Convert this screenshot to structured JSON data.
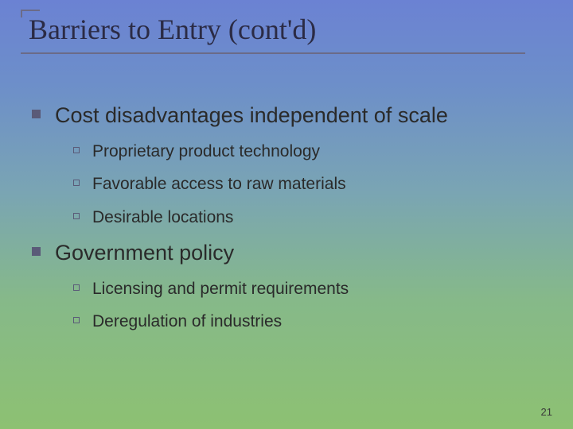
{
  "slide": {
    "title": "Barriers to Entry (cont'd)",
    "page_number": "21",
    "background_gradient": {
      "from": "#6b82d3",
      "to": "#8dc172"
    },
    "title_color": "#2b2b45",
    "title_font": "Georgia serif",
    "title_fontsize": 36,
    "body_font": "Arial",
    "l1_fontsize": 27,
    "l2_fontsize": 21,
    "l1_bullet_color": "#5a5a78",
    "l2_bullet_border": "#5a5a78",
    "items": [
      {
        "text": "Cost disadvantages independent of scale",
        "children": [
          {
            "text": "Proprietary product technology"
          },
          {
            "text": "Favorable access to raw materials"
          },
          {
            "text": "Desirable locations"
          }
        ]
      },
      {
        "text": "Government policy",
        "children": [
          {
            "text": "Licensing and permit requirements"
          },
          {
            "text": "Deregulation of industries"
          }
        ]
      }
    ]
  }
}
